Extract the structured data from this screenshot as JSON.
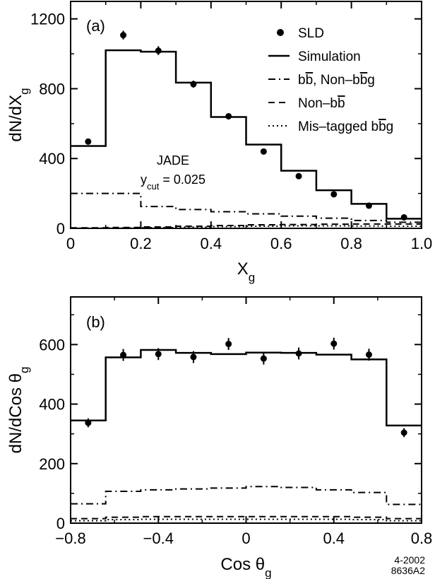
{
  "chart_data": [
    {
      "panel": "(a)",
      "type": "line",
      "xlabel": "X",
      "xlabel_sub": "g",
      "ylabel": "dN/dX",
      "ylabel_sub": "g",
      "xlim": [
        0,
        1.0
      ],
      "ylim": [
        0,
        1300
      ],
      "xticks": [
        0,
        0.2,
        0.4,
        0.6,
        0.8,
        1.0
      ],
      "xtick_labels": [
        "0",
        "0.2",
        "0.4",
        "0.6",
        "0.8",
        "1.0"
      ],
      "yticks": [
        0,
        400,
        800,
        1200
      ],
      "ytick_labels": [
        "0",
        "400",
        "800",
        "1200"
      ],
      "annotation_title": "JADE",
      "annotation_var": "y",
      "annotation_sub": "cut",
      "annotation_value": " = 0.025",
      "series": [
        {
          "name": "SLD",
          "style": "points",
          "x": [
            0.05,
            0.15,
            0.25,
            0.35,
            0.45,
            0.55,
            0.65,
            0.75,
            0.85,
            0.95
          ],
          "y": [
            497,
            1107,
            1018,
            826,
            642,
            440,
            299,
            195,
            130,
            63
          ],
          "err": [
            15,
            25,
            25,
            20,
            18,
            15,
            12,
            10,
            8,
            6
          ]
        },
        {
          "name": "Simulation",
          "style": "solid",
          "edges": [
            0,
            0.1,
            0.2,
            0.3,
            0.4,
            0.5,
            0.6,
            0.7,
            0.8,
            0.9,
            1.0
          ],
          "values": [
            472,
            1020,
            1012,
            835,
            638,
            480,
            330,
            218,
            140,
            55
          ]
        },
        {
          "name": "bb̅, Non–bb̅g",
          "style": "dashdot",
          "edges": [
            0,
            0.1,
            0.2,
            0.3,
            0.4,
            0.5,
            0.6,
            0.7,
            0.8,
            0.9,
            1.0
          ],
          "values": [
            200,
            200,
            125,
            108,
            95,
            83,
            70,
            58,
            45,
            35
          ]
        },
        {
          "name": "Non–bb̅",
          "style": "dashed",
          "edges": [
            0,
            0.1,
            0.2,
            0.3,
            0.4,
            0.5,
            0.6,
            0.7,
            0.8,
            0.9,
            1.0
          ],
          "values": [
            3,
            5,
            8,
            12,
            16,
            20,
            22,
            24,
            25,
            25
          ]
        },
        {
          "name": "Mis–tagged bb̅g",
          "style": "dotted",
          "edges": [
            0,
            0.1,
            0.2,
            0.3,
            0.4,
            0.5,
            0.6,
            0.7,
            0.8,
            0.9,
            1.0
          ],
          "values": [
            1,
            2,
            4,
            7,
            10,
            12,
            14,
            14,
            13,
            12
          ]
        }
      ]
    },
    {
      "panel": "(b)",
      "type": "line",
      "xlabel": "Cos θ",
      "xlabel_sub": "g",
      "ylabel": "dN/dCos θ",
      "ylabel_sub": "g",
      "xlim": [
        -0.8,
        0.8
      ],
      "ylim": [
        0,
        760
      ],
      "xticks": [
        -0.8,
        -0.4,
        0,
        0.4,
        0.8
      ],
      "xtick_labels": [
        "−0.8",
        "−0.4",
        "0",
        "0.4",
        "0.8"
      ],
      "yticks": [
        0,
        200,
        400,
        600
      ],
      "ytick_labels": [
        "0",
        "200",
        "400",
        "600"
      ],
      "series": [
        {
          "name": "SLD",
          "style": "points",
          "x": [
            -0.72,
            -0.56,
            -0.4,
            -0.24,
            -0.08,
            0.08,
            0.24,
            0.4,
            0.56,
            0.72
          ],
          "y": [
            337,
            565,
            568,
            558,
            602,
            553,
            570,
            603,
            566,
            304
          ],
          "err": [
            15,
            20,
            20,
            20,
            20,
            20,
            20,
            20,
            20,
            15
          ]
        },
        {
          "name": "Simulation",
          "style": "solid",
          "edges": [
            -0.8,
            -0.64,
            -0.48,
            -0.32,
            -0.16,
            0,
            0.16,
            0.32,
            0.48,
            0.64,
            0.8
          ],
          "values": [
            345,
            557,
            582,
            572,
            568,
            573,
            572,
            566,
            550,
            328
          ]
        },
        {
          "name": "bb̅, Non–bb̅g",
          "style": "dashdot",
          "edges": [
            -0.8,
            -0.64,
            -0.48,
            -0.32,
            -0.16,
            0,
            0.16,
            0.32,
            0.48,
            0.64,
            0.8
          ],
          "values": [
            65,
            107,
            112,
            115,
            118,
            123,
            120,
            112,
            103,
            63
          ]
        },
        {
          "name": "Non–bb̅",
          "style": "dashed",
          "edges": [
            -0.8,
            -0.64,
            -0.48,
            -0.32,
            -0.16,
            0,
            0.16,
            0.32,
            0.48,
            0.64,
            0.8
          ],
          "values": [
            15,
            20,
            22,
            22,
            22,
            22,
            22,
            22,
            20,
            15
          ]
        },
        {
          "name": "Mis–tagged bb̅g",
          "style": "dotted",
          "edges": [
            -0.8,
            -0.64,
            -0.48,
            -0.32,
            -0.16,
            0,
            0.16,
            0.32,
            0.48,
            0.64,
            0.8
          ],
          "values": [
            8,
            12,
            13,
            13,
            13,
            13,
            13,
            13,
            12,
            8
          ]
        }
      ]
    }
  ],
  "legend": {
    "items": [
      {
        "style": "points",
        "text": "SLD"
      },
      {
        "style": "solid",
        "text": "Simulation"
      },
      {
        "style": "dashdot",
        "text_parts": [
          "b",
          "b",
          ", Non–b",
          "b",
          "g"
        ],
        "bar": [
          false,
          true,
          false,
          true,
          false
        ]
      },
      {
        "style": "dashed",
        "text_parts": [
          "Non–b",
          "b"
        ],
        "bar": [
          false,
          true
        ]
      },
      {
        "style": "dotted",
        "text_parts": [
          "Mis–tagged b",
          "b",
          "g"
        ],
        "bar": [
          false,
          true,
          false
        ]
      }
    ]
  },
  "footer": {
    "date": "4-2002",
    "code": "8636A2"
  }
}
